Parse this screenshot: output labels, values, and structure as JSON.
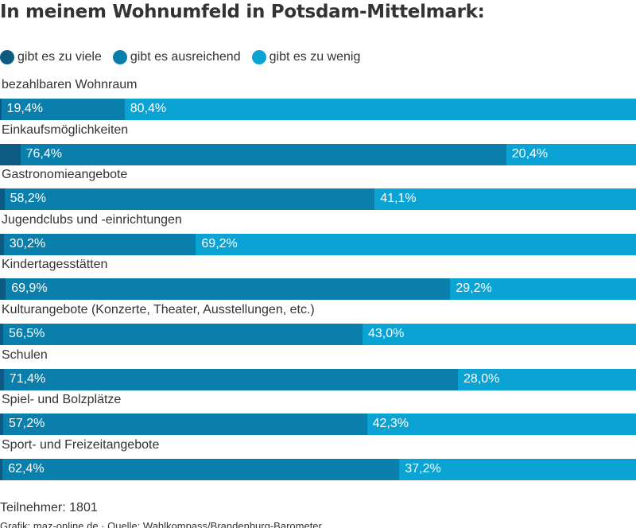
{
  "title": "In meinem Wohnumfeld in Potsdam-Mittelmark:",
  "legend": [
    {
      "label": "gibt es zu viele",
      "color": "#0d5b82"
    },
    {
      "label": "gibt es ausreichend",
      "color": "#0a7fac"
    },
    {
      "label": "gibt es zu wenig",
      "color": "#0aa3d3"
    }
  ],
  "chart_data": {
    "type": "bar",
    "orientation": "horizontal",
    "stacked": true,
    "title": "In meinem Wohnumfeld in Potsdam-Mittelmark:",
    "categories": [
      "bezahlbaren Wohnraum",
      "Einkaufsmöglichkeiten",
      "Gastronomieangebote",
      "Jugendclubs und -einrichtungen",
      "Kindertagesstätten",
      "Kulturangebote (Konzerte, Theater, Ausstellungen, etc.)",
      "Schulen",
      "Spiel- und Bolzplätze",
      "Sport- und Freizeitangebote"
    ],
    "series": [
      {
        "name": "gibt es zu viele",
        "color": "#0d5b82",
        "values": [
          0.2,
          3.2,
          0.7,
          0.6,
          0.9,
          0.5,
          0.6,
          0.5,
          0.4
        ],
        "labels": [
          "",
          "",
          "",
          "",
          "",
          "",
          "",
          "",
          ""
        ]
      },
      {
        "name": "gibt es ausreichend",
        "color": "#0a7fac",
        "values": [
          19.4,
          76.4,
          58.2,
          30.2,
          69.9,
          56.5,
          71.4,
          57.2,
          62.4
        ],
        "labels": [
          "19,4%",
          "76,4%",
          "58,2%",
          "30,2%",
          "69,9%",
          "56,5%",
          "71,4%",
          "57,2%",
          "62,4%"
        ]
      },
      {
        "name": "gibt es zu wenig",
        "color": "#0aa3d3",
        "values": [
          80.4,
          20.4,
          41.1,
          69.2,
          29.2,
          43.0,
          28.0,
          42.3,
          37.2
        ],
        "labels": [
          "80,4%",
          "20,4%",
          "41,1%",
          "69,2%",
          "29,2%",
          "43,0%",
          "28,0%",
          "42,3%",
          "37,2%"
        ]
      }
    ],
    "xlim": [
      0,
      100
    ],
    "legend_position": "top-left"
  },
  "footer": {
    "participants": "Teilnehmer: 1801",
    "source": "Grafik: maz-online.de · Quelle: Wahlkompass/Brandenburg-Barometer"
  }
}
